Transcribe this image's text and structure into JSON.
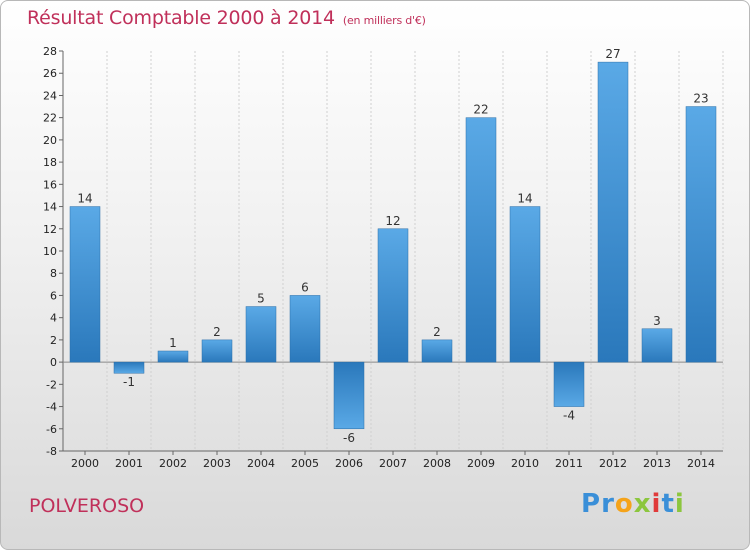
{
  "header": {
    "title": "Résultat Comptable 2000 à 2014",
    "subtitle": "(en milliers d'€)"
  },
  "footer": {
    "commune": "POLVEROSO",
    "logo_letters": [
      "P",
      "r",
      "o",
      "x",
      "i",
      "t",
      "i"
    ],
    "logo_colors": [
      "#3a8fd8",
      "#3a8fd8",
      "#f5a31a",
      "#8cc63e",
      "#e03a3a",
      "#3a8fd8",
      "#8cc63e"
    ]
  },
  "colors": {
    "bar_dark": "#2a78bb",
    "bar_light": "#5aa9e6",
    "axis": "#666666",
    "grid": "#d0d0d0",
    "accent": "#c0305a"
  },
  "chart_data": {
    "type": "bar",
    "title": "Résultat Comptable 2000 à 2014",
    "subtitle": "(en milliers d'€)",
    "xlabel": "",
    "ylabel": "",
    "categories": [
      "2000",
      "2001",
      "2002",
      "2003",
      "2004",
      "2005",
      "2006",
      "2007",
      "2008",
      "2009",
      "2010",
      "2011",
      "2012",
      "2013",
      "2014"
    ],
    "values": [
      14,
      -1,
      1,
      2,
      5,
      6,
      -6,
      12,
      2,
      22,
      14,
      -4,
      27,
      3,
      23
    ],
    "ylim": [
      -8,
      28
    ],
    "yticks": [
      -8,
      -6,
      -4,
      -2,
      0,
      2,
      4,
      6,
      8,
      10,
      12,
      14,
      16,
      18,
      20,
      22,
      24,
      26,
      28
    ],
    "grid": "vertical",
    "legend": "none"
  }
}
